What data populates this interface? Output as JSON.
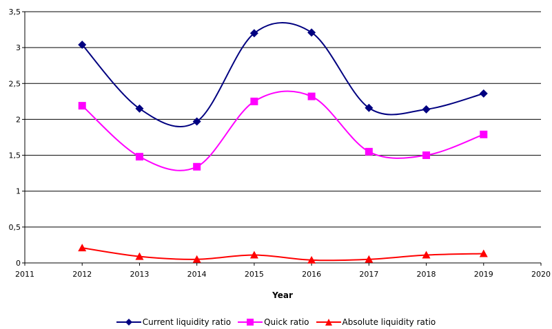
{
  "chart_data": {
    "type": "line",
    "title": "",
    "xlabel": "Year",
    "ylabel": "",
    "xlim": [
      2011,
      2020
    ],
    "ylim": [
      0,
      3.5
    ],
    "x_ticks": [
      "2011",
      "2012",
      "2013",
      "2014",
      "2015",
      "2016",
      "2017",
      "2018",
      "2019",
      "2020"
    ],
    "y_ticks": [
      "0",
      "0,5",
      "1",
      "1,5",
      "2",
      "2,5",
      "3",
      "3,5"
    ],
    "grid": "horizontal",
    "legend_position": "bottom",
    "x": [
      2012,
      2013,
      2014,
      2015,
      2016,
      2017,
      2018,
      2019
    ],
    "series": [
      {
        "name": "Current liquidity ratio",
        "color": "#000080",
        "marker": "diamond",
        "values": [
          3.04,
          2.15,
          1.97,
          3.2,
          3.21,
          2.16,
          2.14,
          2.36
        ]
      },
      {
        "name": "Quick ratio",
        "color": "#ff00ff",
        "marker": "square",
        "values": [
          2.19,
          1.48,
          1.34,
          2.25,
          2.32,
          1.55,
          1.5,
          1.79
        ]
      },
      {
        "name": "Absolute liquidity ratio",
        "color": "#ff0000",
        "marker": "triangle",
        "values": [
          0.21,
          0.09,
          0.05,
          0.11,
          0.04,
          0.05,
          0.11,
          0.13
        ]
      }
    ]
  }
}
